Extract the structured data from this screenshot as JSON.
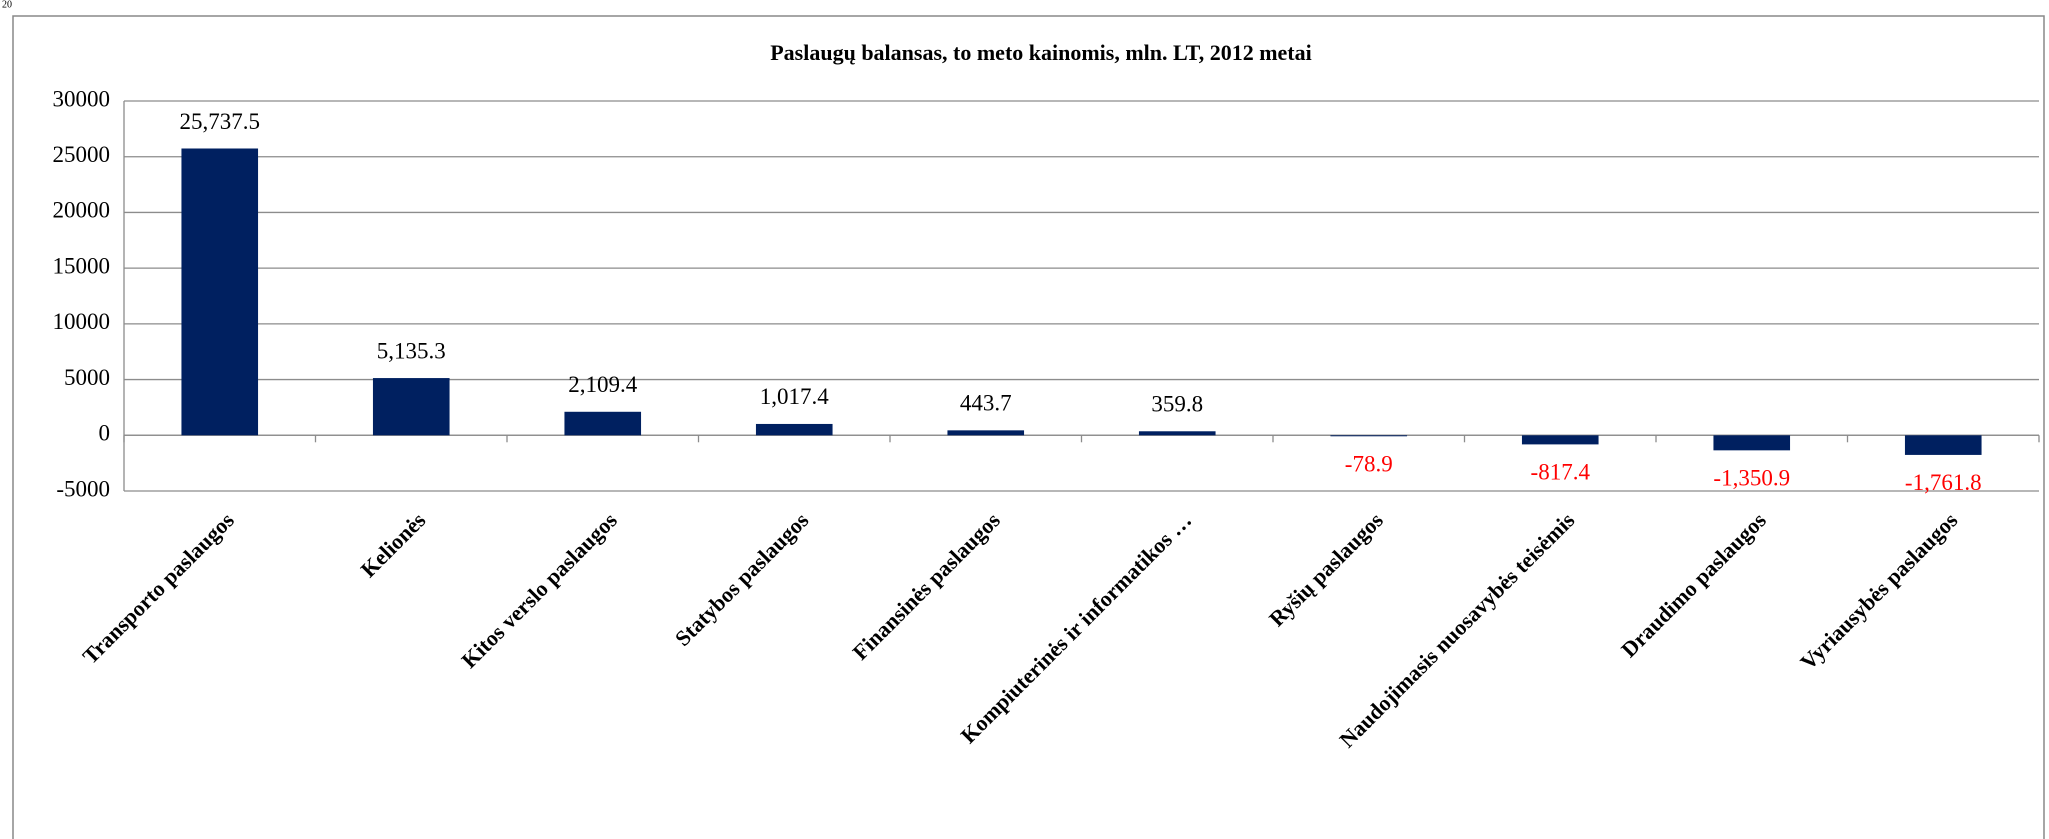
{
  "page_number": "20",
  "chart_data": {
    "type": "bar",
    "title": "Paslaugų balansas, to meto kainomis, mln. LT, 2012 metai",
    "categories": [
      "Transporto paslaugos",
      "Kelionės",
      "Kitos verslo paslaugos",
      "Statybos paslaugos",
      "Finansinės paslaugos",
      "Kompiuterinės ir informatikos …",
      "Ryšių paslaugos",
      "Naudojimasis nuosavybės teisėmis",
      "Draudimo paslaugos",
      "Vyriausybės paslaugos"
    ],
    "values": [
      25737.5,
      5135.3,
      2109.4,
      1017.4,
      443.7,
      359.8,
      -78.9,
      -817.4,
      -1350.9,
      -1761.8
    ],
    "value_labels": [
      "25,737.5",
      "5,135.3",
      "2,109.4",
      "1,017.4",
      "443.7",
      "359.8",
      "-78.9",
      "-817.4",
      "-1,350.9",
      "-1,761.8"
    ],
    "color": "#002060",
    "value_label_color": "#000000",
    "negative_value_label_color": "#ff0000",
    "ylim": [
      -5000,
      30000
    ],
    "yticks": [
      -5000,
      0,
      5000,
      10000,
      15000,
      20000,
      25000,
      30000
    ],
    "grid": true
  }
}
